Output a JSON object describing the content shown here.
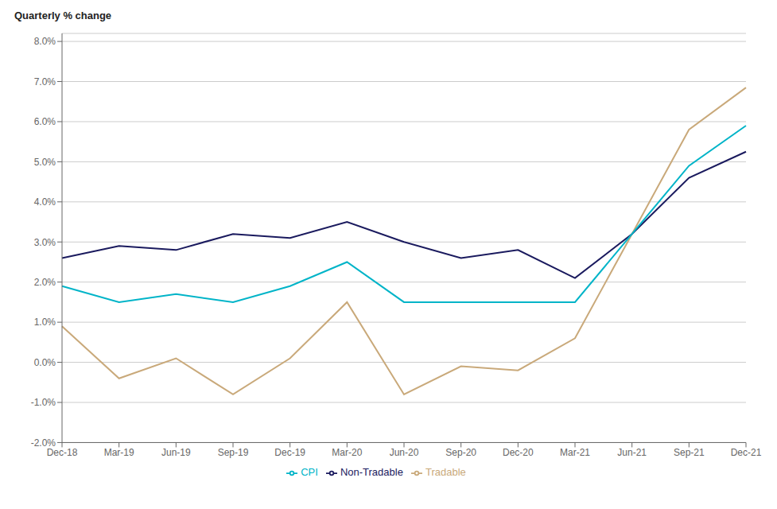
{
  "chart_data": {
    "type": "line",
    "y_label": "Quarterly % change",
    "categories": [
      "Dec-18",
      "Mar-19",
      "Jun-19",
      "Sep-19",
      "Dec-19",
      "Mar-20",
      "Jun-20",
      "Sep-20",
      "Dec-20",
      "Mar-21",
      "Jun-21",
      "Sep-21",
      "Dec-21"
    ],
    "series": [
      {
        "name": "Tradable",
        "color": "#c9a97a",
        "values": [
          0.009,
          -0.004,
          0.001,
          -0.008,
          0.001,
          0.015,
          -0.008,
          -0.001,
          -0.002,
          0.006,
          0.032,
          0.058,
          0.0685
        ]
      },
      {
        "name": "Non-Tradable",
        "color": "#1a1a5e",
        "values": [
          0.026,
          0.029,
          0.028,
          0.032,
          0.031,
          0.035,
          0.03,
          0.026,
          0.028,
          0.021,
          0.032,
          0.046,
          0.0525
        ]
      },
      {
        "name": "CPI",
        "color": "#00b4c8",
        "values": [
          0.019,
          0.015,
          0.017,
          0.015,
          0.019,
          0.025,
          0.015,
          0.015,
          0.015,
          0.015,
          0.032,
          0.049,
          0.059
        ]
      }
    ],
    "ylim": [
      -0.02,
      0.082
    ],
    "yticks": [
      {
        "value": -0.02,
        "label": "-2.0%"
      },
      {
        "value": -0.01,
        "label": "-1.0%"
      },
      {
        "value": 0.0,
        "label": "0.0%"
      },
      {
        "value": 0.01,
        "label": "1.0%"
      },
      {
        "value": 0.02,
        "label": "2.0%"
      },
      {
        "value": 0.03,
        "label": "3.0%"
      },
      {
        "value": 0.04,
        "label": "4.0%"
      },
      {
        "value": 0.05,
        "label": "5.0%"
      },
      {
        "value": 0.06,
        "label": "6.0%"
      },
      {
        "value": 0.07,
        "label": "7.0%"
      },
      {
        "value": 0.08,
        "label": "8.0%"
      }
    ],
    "grid": true,
    "legend": "bottom"
  }
}
